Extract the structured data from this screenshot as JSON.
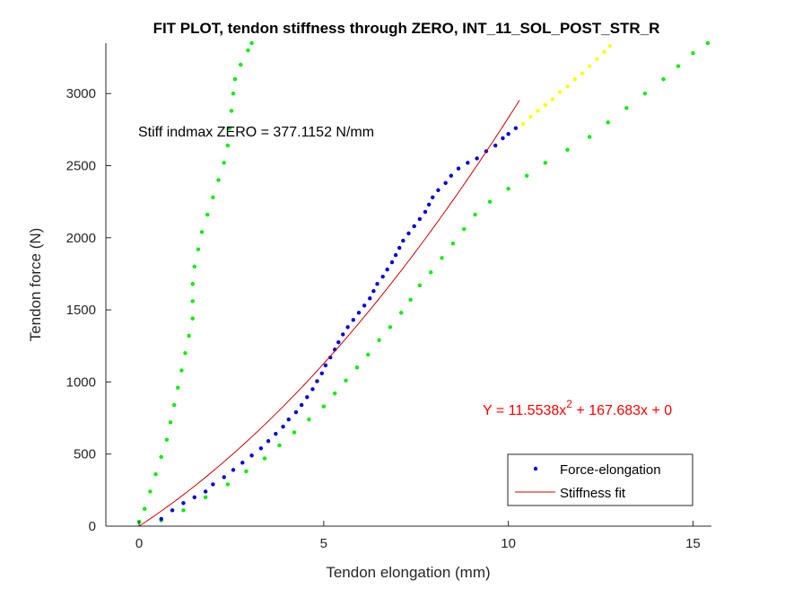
{
  "chart_data": {
    "type": "scatter",
    "title": "FIT PLOT, tendon stiffness through ZERO, INT_11_SOL_POST_STR_R",
    "xlabel": "Tendon elongation (mm)",
    "ylabel": "Tendon force (N)",
    "xlim": [
      -0.9,
      15.5
    ],
    "ylim": [
      0,
      3350
    ],
    "xticks": [
      0,
      5,
      10,
      15
    ],
    "yticks": [
      0,
      500,
      1000,
      1500,
      2000,
      2500,
      3000
    ],
    "grid": false,
    "legend_position": "bottom-right",
    "annotations": {
      "stiffness_text": "Stiff indmax ZERO = 377.1152 N/mm",
      "equation_prefix": "Y = 11.5538x",
      "equation_exponent": "2",
      "equation_suffix": " + 167.683x + 0"
    },
    "legend": [
      {
        "label": "Force-elongation",
        "marker": "dot",
        "color": "#0000dd"
      },
      {
        "label": "Stiffness fit",
        "marker": "line",
        "color": "#cc0000"
      }
    ],
    "fit": {
      "a": 11.5538,
      "b": 167.683,
      "c": 0,
      "x_range": [
        0,
        10.3
      ],
      "color": "#cc0000"
    },
    "series": [
      {
        "name": "Force-elongation",
        "color": "#0000dd",
        "points": [
          [
            0.6,
            50
          ],
          [
            0.9,
            110
          ],
          [
            1.2,
            160
          ],
          [
            1.5,
            200
          ],
          [
            1.8,
            240
          ],
          [
            2.0,
            290
          ],
          [
            2.3,
            340
          ],
          [
            2.55,
            390
          ],
          [
            2.8,
            440
          ],
          [
            3.05,
            490
          ],
          [
            3.3,
            540
          ],
          [
            3.5,
            590
          ],
          [
            3.7,
            640
          ],
          [
            3.9,
            690
          ],
          [
            4.05,
            740
          ],
          [
            4.25,
            790
          ],
          [
            4.4,
            840
          ],
          [
            4.55,
            895
          ],
          [
            4.7,
            950
          ],
          [
            4.82,
            1005
          ],
          [
            4.95,
            1060
          ],
          [
            5.05,
            1115
          ],
          [
            5.18,
            1170
          ],
          [
            5.3,
            1225
          ],
          [
            5.4,
            1275
          ],
          [
            5.52,
            1330
          ],
          [
            5.65,
            1380
          ],
          [
            5.8,
            1430
          ],
          [
            5.95,
            1480
          ],
          [
            6.1,
            1530
          ],
          [
            6.25,
            1580
          ],
          [
            6.35,
            1630
          ],
          [
            6.45,
            1680
          ],
          [
            6.6,
            1730
          ],
          [
            6.72,
            1780
          ],
          [
            6.85,
            1830
          ],
          [
            6.95,
            1880
          ],
          [
            7.05,
            1930
          ],
          [
            7.15,
            1980
          ],
          [
            7.3,
            2030
          ],
          [
            7.45,
            2080
          ],
          [
            7.6,
            2130
          ],
          [
            7.75,
            2180
          ],
          [
            7.85,
            2230
          ],
          [
            7.95,
            2280
          ],
          [
            8.1,
            2330
          ],
          [
            8.3,
            2380
          ],
          [
            8.45,
            2430
          ],
          [
            8.65,
            2480
          ],
          [
            8.9,
            2520
          ],
          [
            9.15,
            2550
          ],
          [
            9.4,
            2600
          ],
          [
            9.65,
            2640
          ],
          [
            9.85,
            2690
          ],
          [
            10.0,
            2720
          ],
          [
            10.2,
            2760
          ]
        ]
      },
      {
        "name": "",
        "color": "#ffff00",
        "points": [
          [
            10.4,
            2790
          ],
          [
            10.6,
            2840
          ],
          [
            10.8,
            2880
          ],
          [
            11.0,
            2920
          ],
          [
            11.2,
            2960
          ],
          [
            11.4,
            3010
          ],
          [
            11.6,
            3050
          ],
          [
            11.8,
            3100
          ],
          [
            12.0,
            3140
          ],
          [
            12.2,
            3190
          ],
          [
            12.4,
            3240
          ],
          [
            12.6,
            3290
          ],
          [
            12.75,
            3330
          ]
        ]
      },
      {
        "name": "",
        "color": "#00ee00",
        "points": [
          [
            0.0,
            30
          ],
          [
            0.15,
            120
          ],
          [
            0.3,
            240
          ],
          [
            0.45,
            360
          ],
          [
            0.6,
            480
          ],
          [
            0.75,
            600
          ],
          [
            0.85,
            720
          ],
          [
            0.95,
            840
          ],
          [
            1.05,
            960
          ],
          [
            1.15,
            1080
          ],
          [
            1.25,
            1200
          ],
          [
            1.35,
            1320
          ],
          [
            1.45,
            1440
          ],
          [
            1.45,
            1560
          ],
          [
            1.45,
            1680
          ],
          [
            1.5,
            1800
          ],
          [
            1.6,
            1920
          ],
          [
            1.7,
            2040
          ],
          [
            1.85,
            2160
          ],
          [
            2.0,
            2280
          ],
          [
            2.15,
            2400
          ],
          [
            2.3,
            2520
          ],
          [
            2.4,
            2640
          ],
          [
            2.45,
            2760
          ],
          [
            2.5,
            2880
          ],
          [
            2.55,
            3000
          ],
          [
            2.6,
            3100
          ],
          [
            2.75,
            3200
          ],
          [
            2.95,
            3300
          ],
          [
            3.05,
            3350
          ]
        ]
      },
      {
        "name": "",
        "color": "#00ee00",
        "points": [
          [
            0,
            30
          ],
          [
            0.6,
            40
          ],
          [
            1.2,
            110
          ],
          [
            1.8,
            200
          ],
          [
            2.4,
            290
          ],
          [
            2.9,
            380
          ],
          [
            3.4,
            470
          ],
          [
            3.8,
            560
          ],
          [
            4.2,
            650
          ],
          [
            4.6,
            740
          ],
          [
            5.0,
            830
          ],
          [
            5.3,
            920
          ],
          [
            5.6,
            1010
          ],
          [
            5.9,
            1100
          ],
          [
            6.2,
            1190
          ],
          [
            6.5,
            1290
          ],
          [
            6.8,
            1380
          ],
          [
            7.1,
            1480
          ],
          [
            7.35,
            1570
          ],
          [
            7.6,
            1670
          ],
          [
            7.9,
            1760
          ],
          [
            8.2,
            1860
          ],
          [
            8.5,
            1960
          ],
          [
            8.8,
            2060
          ],
          [
            9.1,
            2160
          ],
          [
            9.5,
            2250
          ],
          [
            10.0,
            2340
          ],
          [
            10.5,
            2430
          ],
          [
            11.0,
            2520
          ],
          [
            11.6,
            2610
          ],
          [
            12.2,
            2700
          ],
          [
            12.7,
            2800
          ],
          [
            13.2,
            2900
          ],
          [
            13.7,
            3000
          ],
          [
            14.2,
            3100
          ],
          [
            14.6,
            3190
          ],
          [
            15.0,
            3280
          ],
          [
            15.4,
            3350
          ]
        ]
      }
    ]
  }
}
